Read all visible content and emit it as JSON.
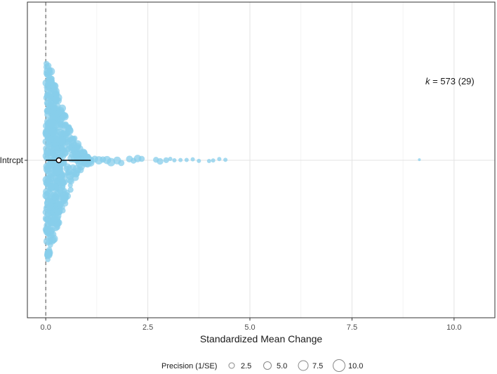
{
  "chart_data": {
    "type": "scatter",
    "title": "",
    "xlabel": "Standardized Mean Change",
    "ylabel": "",
    "xlim": [
      -0.45,
      11.0
    ],
    "x_ticks": [
      0.0,
      2.5,
      5.0,
      7.5,
      10.0
    ],
    "x_tick_labels": [
      "0.0",
      "2.5",
      "5.0",
      "7.5",
      "10.0"
    ],
    "y_categories": [
      "Intrcpt"
    ],
    "grid": true,
    "reference_line_x": 0,
    "annotation": {
      "k_symbol": "k",
      "k_text": " = 573 (29)",
      "k_value": 573,
      "k_clusters": 29
    },
    "estimate": {
      "point": 0.32,
      "ci_lower": 0.0,
      "ci_upper": 1.1
    },
    "point_color": "#87ceeb",
    "n_points": 573,
    "x_distribution_note_free_outliers": [
      1.1,
      1.2,
      1.3,
      1.4,
      1.5,
      1.6,
      1.75,
      1.85,
      2.05,
      2.15,
      2.25,
      2.35,
      2.7,
      2.8,
      2.95,
      3.05,
      3.15,
      3.3,
      3.45,
      3.6,
      3.75,
      4.0,
      4.1,
      4.25,
      4.4,
      9.15
    ],
    "legend": {
      "title": "Precision (1/SE)",
      "labels": [
        "2.5",
        "5.0",
        "7.5",
        "10.0"
      ],
      "values": [
        2.5,
        5.0,
        7.5,
        10.0
      ],
      "placement": "bottom"
    }
  }
}
